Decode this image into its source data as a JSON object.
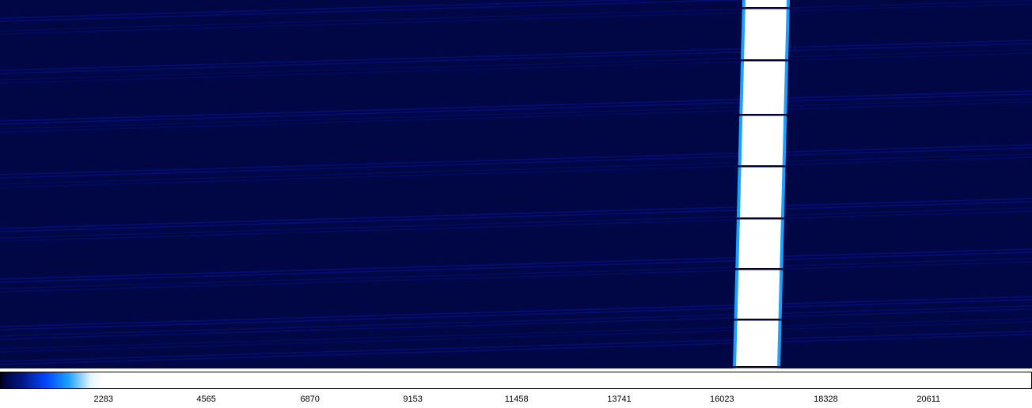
{
  "chart_data": {
    "type": "heatmap",
    "title": "",
    "xlabel": "",
    "ylabel": "",
    "colorbar": {
      "range": [
        0,
        22892
      ],
      "ticks": [
        2283,
        4565,
        6870,
        9153,
        11458,
        13741,
        16023,
        18328,
        20611
      ],
      "colors": [
        {
          "value": 0,
          "color": "#000033"
        },
        {
          "value": 500,
          "color": "#001a8c"
        },
        {
          "value": 1000,
          "color": "#0046ff"
        },
        {
          "value": 1500,
          "color": "#1aa0ff"
        },
        {
          "value": 2000,
          "color": "#e6f6ff"
        },
        {
          "value": 2283,
          "color": "#ffffff"
        },
        {
          "value": 22892,
          "color": "#ffffff"
        }
      ]
    },
    "background_color": "#000744",
    "bright_band": {
      "value": 22000,
      "x_center_top": 968,
      "x_center_bottom": 956,
      "color": "#ffffff",
      "edge_color": "#1aa0ff"
    },
    "faint_streak_color": "#04138a",
    "dark_line_color": "#000033"
  }
}
